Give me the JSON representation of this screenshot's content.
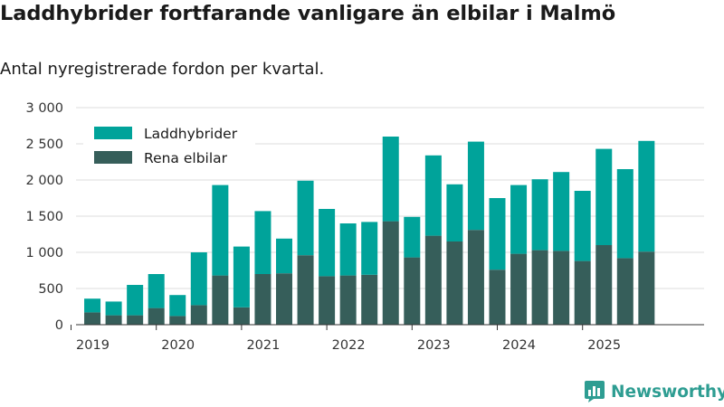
{
  "title": "Laddhybrider fortfarande vanligare än elbilar i Malmö",
  "subtitle": "Antal nyregistrerade fordon per kvartal.",
  "brand": "Newsworthy",
  "colors": {
    "series_top": "#00a39a",
    "series_bottom": "#365e5a",
    "grid": "#dddddd",
    "axis": "#333333",
    "brand": "#2e9d92"
  },
  "chart_data": {
    "type": "bar",
    "stacked": true,
    "title": "Laddhybrider fortfarande vanligare än elbilar i Malmö",
    "subtitle": "Antal nyregistrerade fordon per kvartal.",
    "xlabel": "",
    "ylabel": "",
    "ylim": [
      0,
      3000
    ],
    "yticks": [
      0,
      500,
      1000,
      1500,
      2000,
      2500,
      3000
    ],
    "ytick_labels": [
      "0",
      "500",
      "1 000",
      "1 500",
      "2 000",
      "2 500",
      "3 000"
    ],
    "xtick_labels": [
      "2019",
      "2020",
      "2021",
      "2022",
      "2023",
      "2024",
      "2025"
    ],
    "legend": [
      "Laddhybrider",
      "Rena elbilar"
    ],
    "legend_position": "top-left",
    "categories": [
      "2019 Q2",
      "2019 Q3",
      "2019 Q4",
      "2020 Q1",
      "2020 Q2",
      "2020 Q3",
      "2020 Q4",
      "2021 Q1",
      "2021 Q2",
      "2021 Q3",
      "2021 Q4",
      "2022 Q1",
      "2022 Q2",
      "2022 Q3",
      "2022 Q4",
      "2023 Q1",
      "2023 Q2",
      "2023 Q3",
      "2023 Q4",
      "2024 Q1",
      "2024 Q2",
      "2024 Q3",
      "2024 Q4",
      "2025 Q1",
      "2025 Q2",
      "2025 Q3",
      "2025 Q4"
    ],
    "series": [
      {
        "name": "Rena elbilar",
        "values": [
          170,
          130,
          130,
          230,
          120,
          270,
          680,
          240,
          700,
          710,
          960,
          670,
          680,
          690,
          1430,
          930,
          1230,
          1150,
          1310,
          760,
          980,
          1030,
          1020,
          880,
          1100,
          920,
          1010
        ]
      },
      {
        "name": "Laddhybrider",
        "values": [
          190,
          190,
          420,
          470,
          290,
          730,
          1250,
          840,
          870,
          480,
          1030,
          930,
          720,
          730,
          1170,
          560,
          1110,
          790,
          1220,
          990,
          950,
          980,
          1090,
          970,
          1330,
          1230,
          1530
        ]
      }
    ]
  }
}
